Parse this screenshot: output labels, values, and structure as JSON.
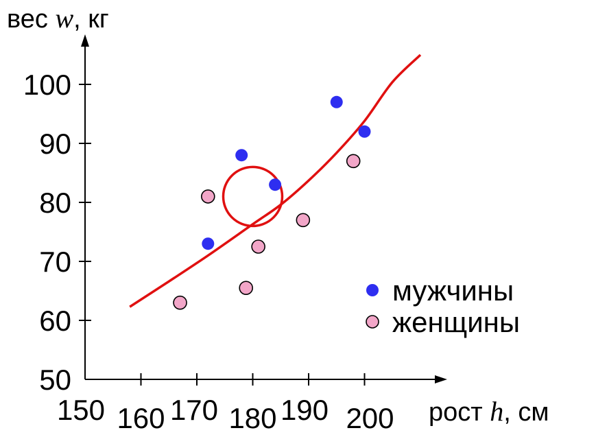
{
  "chart_data": {
    "type": "scatter",
    "ylabel": {
      "prefix": "вес ",
      "var": "w",
      "suffix": ", кг"
    },
    "xlabel": {
      "prefix": "рост ",
      "var": "h",
      "suffix": ", см"
    },
    "xlim": [
      150,
      215
    ],
    "ylim": [
      50,
      105
    ],
    "x_ticks": [
      150,
      160,
      170,
      180,
      190,
      200
    ],
    "x_tick_labels": [
      "150",
      "160",
      "170",
      "180",
      "190",
      "200"
    ],
    "y_ticks": [
      50,
      60,
      70,
      80,
      90,
      100
    ],
    "y_tick_labels": [
      "50",
      "60",
      "70",
      "80",
      "90",
      "100"
    ],
    "series": [
      {
        "name": "мужчины",
        "color": "#2e2ef0",
        "marker": "filled-circle",
        "points": [
          [
            172,
            73
          ],
          [
            178,
            88
          ],
          [
            184,
            83
          ],
          [
            195,
            97
          ],
          [
            200,
            92
          ]
        ]
      },
      {
        "name": "женщины",
        "color": "#f2a6c8",
        "marker": "outlined-circle",
        "points": [
          [
            167,
            63
          ],
          [
            172,
            81
          ],
          [
            178.8,
            65.5
          ],
          [
            181,
            72.5
          ],
          [
            189,
            77
          ],
          [
            198,
            87
          ]
        ]
      }
    ],
    "trend": {
      "color": "#e01010",
      "type": "curve",
      "points": [
        [
          158,
          62.3
        ],
        [
          165,
          66.6
        ],
        [
          172,
          71.0
        ],
        [
          180,
          76.3
        ],
        [
          185,
          79.6
        ],
        [
          190,
          83.7
        ],
        [
          195,
          88.4
        ],
        [
          200,
          93.8
        ],
        [
          205,
          100.4
        ],
        [
          210,
          105.0
        ]
      ]
    },
    "highlight": {
      "x": 180,
      "y": 81,
      "color": "#e01010",
      "shape": "circle"
    }
  }
}
